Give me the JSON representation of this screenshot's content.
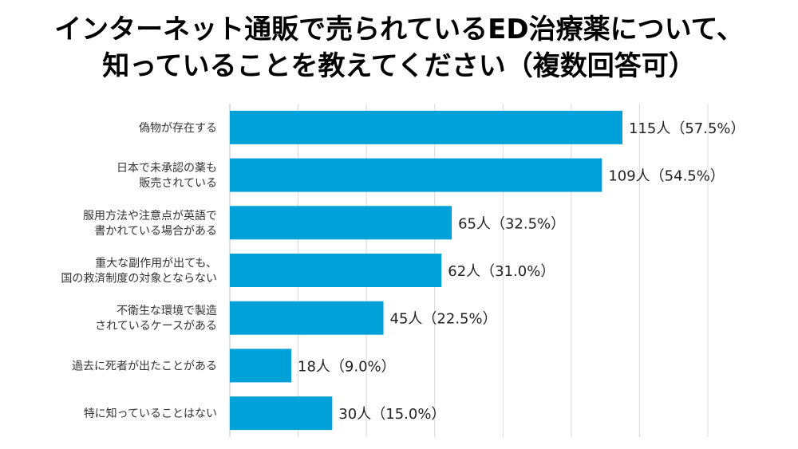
{
  "title_lines": [
    "インターネット通販で売られているED治療薬について、",
    "知っていることを教えてください（複数回答可）"
  ],
  "chart_data": {
    "type": "bar",
    "orientation": "horizontal",
    "title": "インターネット通販で売られているED治療薬について、知っていることを教えてください（複数回答可）",
    "categories": [
      [
        "偽物が存在する"
      ],
      [
        "日本で未承認の薬も",
        "販売されている"
      ],
      [
        "服用方法や注意点が英語で",
        "書かれている場合がある"
      ],
      [
        "重大な副作用が出ても、",
        "国の救済制度の対象とならない"
      ],
      [
        "不衛生な環境で製造",
        "されているケースがある"
      ],
      [
        "過去に死者が出たことがある"
      ],
      [
        "特に知っていることはない"
      ]
    ],
    "values": [
      115,
      109,
      65,
      62,
      45,
      18,
      30
    ],
    "data_labels": [
      "115人（57.5%）",
      "109人（54.5%）",
      "65人（32.5%）",
      "62人（31.0%）",
      "45人（22.5%）",
      "18人（9.0%）",
      "30人（15.0%）"
    ],
    "xlim": [
      0,
      140
    ],
    "grid": true,
    "legend": "none",
    "bar_color": "#00a0d8",
    "grid_color": "#d9d9d9"
  }
}
